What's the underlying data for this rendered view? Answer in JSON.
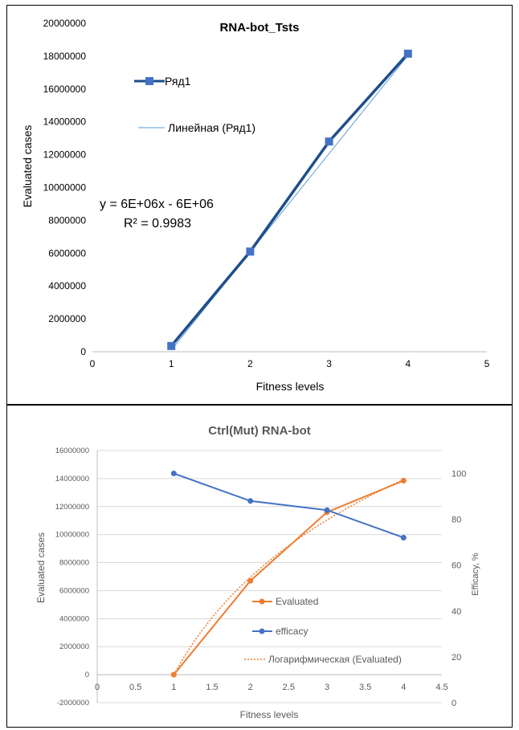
{
  "chart_data": [
    {
      "type": "line",
      "title": "RNA-bot_Tsts",
      "xlabel": "Fitness levels",
      "ylabel": "Evaluated cases",
      "xlim": [
        0,
        5
      ],
      "ylim": [
        0,
        20000000
      ],
      "x_ticks": [
        "0",
        "1",
        "2",
        "3",
        "4",
        "5"
      ],
      "y_ticks": [
        "0",
        "2000000",
        "4000000",
        "6000000",
        "8000000",
        "10000000",
        "12000000",
        "14000000",
        "16000000",
        "18000000",
        "20000000"
      ],
      "series": [
        {
          "name": "Ряд1",
          "x": [
            1,
            2,
            3,
            4
          ],
          "values": [
            350000,
            6100000,
            12800000,
            18150000
          ],
          "color": "#1f4e8c",
          "marker": "square"
        }
      ],
      "trendline": {
        "name": "Линейная (Ряд1)",
        "kind": "linear",
        "x": [
          1,
          4
        ],
        "values": [
          100000,
          18050000
        ],
        "color": "#5b9bd5"
      },
      "equation": "y = 6E+06x - 6E+06",
      "r_squared": "R² = 0.9983",
      "legend_placement": "left-top",
      "grid": false
    },
    {
      "type": "line",
      "title": "Ctrl(Mut) RNA-bot",
      "xlabel": "Fitness levels",
      "ylabel": "Evaluated cases",
      "y2label": "Efficacy, %",
      "xlim": [
        0,
        4.5
      ],
      "ylim": [
        -2000000,
        16000000
      ],
      "y2lim": [
        0,
        110
      ],
      "x_ticks": [
        "0",
        "0.5",
        "1",
        "1.5",
        "2",
        "2.5",
        "3",
        "3.5",
        "4",
        "4.5"
      ],
      "y_ticks": [
        "-2000000",
        "0",
        "2000000",
        "4000000",
        "6000000",
        "8000000",
        "10000000",
        "12000000",
        "14000000",
        "16000000"
      ],
      "y2_ticks": [
        "0",
        "20",
        "40",
        "60",
        "80",
        "100"
      ],
      "series": [
        {
          "name": "Evaluated",
          "axis": "left",
          "x": [
            1,
            2,
            3,
            4
          ],
          "values": [
            0,
            6700000,
            11600000,
            13850000
          ],
          "color": "#ed7d31"
        },
        {
          "name": "efficacy",
          "axis": "right",
          "x": [
            1,
            2,
            3,
            4
          ],
          "values": [
            100,
            88,
            84,
            72
          ],
          "color": "#4472c4"
        }
      ],
      "trendline": {
        "name": "Логарифмическая (Evaluated)",
        "kind": "logarithmic",
        "color": "#ed7d31",
        "a": 10047000,
        "b": 0
      },
      "legend_placement": "right-bottom",
      "grid": true
    }
  ]
}
